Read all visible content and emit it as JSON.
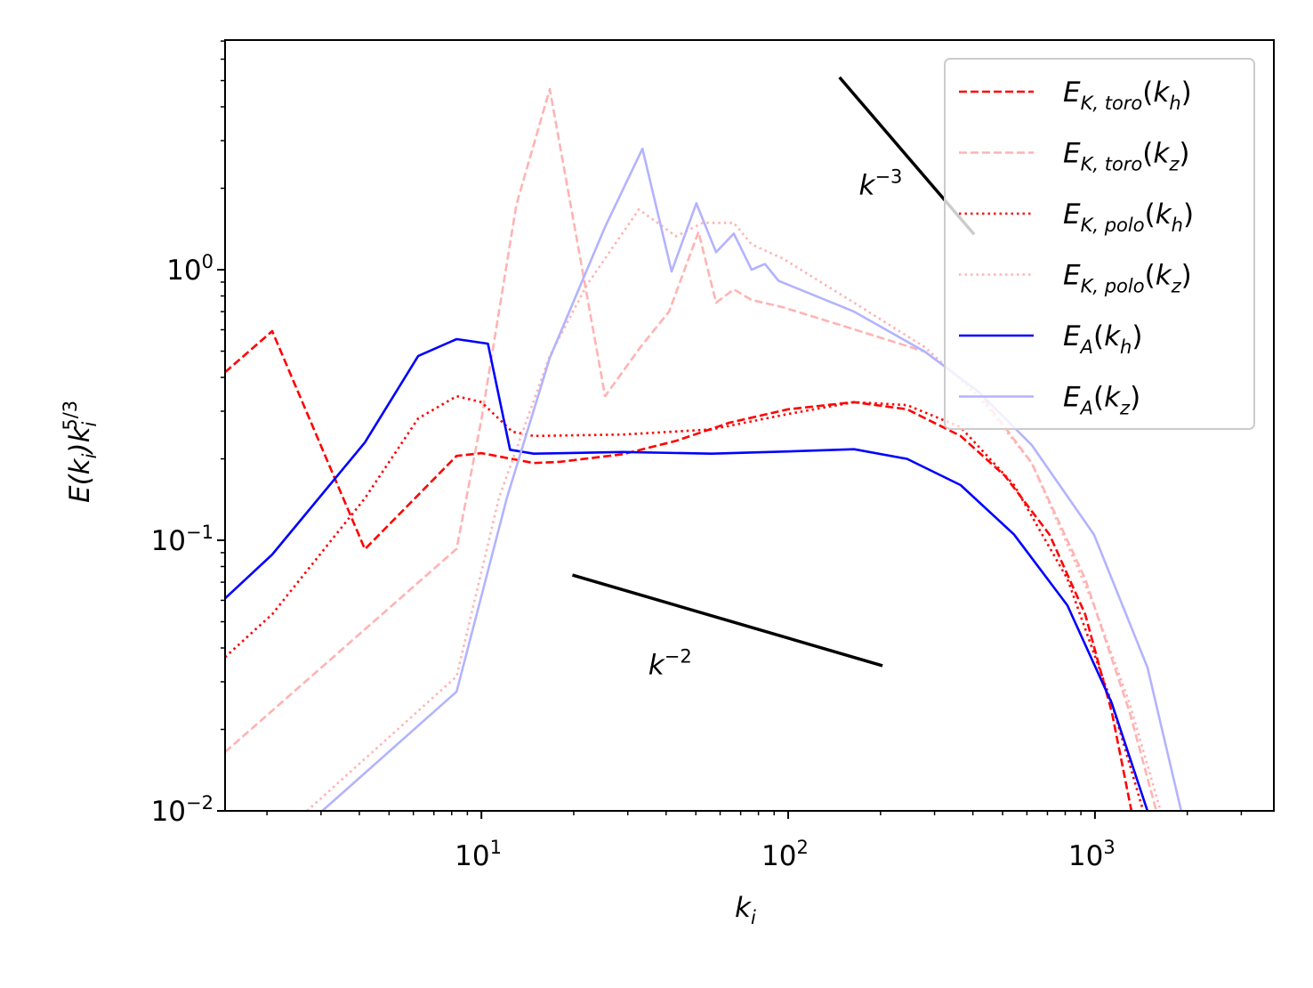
{
  "chart_data": {
    "type": "line",
    "title": "",
    "xlabel": {
      "base": "k",
      "sub": "i"
    },
    "ylabel": {
      "p1": "E(k",
      "s1": "i",
      "p2": ")k",
      "s2": "i",
      "sup": "5/3"
    },
    "xscale": "log",
    "yscale": "log",
    "xlim": [
      1.46,
      3830
    ],
    "ylim": [
      0.01,
      7.06
    ],
    "xticks": [
      {
        "base": "10",
        "exp": "1",
        "value": 10
      },
      {
        "base": "10",
        "exp": "2",
        "value": 100
      },
      {
        "base": "10",
        "exp": "3",
        "value": 1000
      }
    ],
    "yticks": [
      {
        "base": "10",
        "exp": "−2",
        "value": 0.01
      },
      {
        "base": "10",
        "exp": "−1",
        "value": 0.1
      },
      {
        "base": "10",
        "exp": "0",
        "value": 1
      }
    ],
    "grid": false,
    "legend_position": "top-right",
    "series": [
      {
        "name": "E_K,toro(k_h)",
        "label": {
          "base": "E",
          "sub": "K, toro",
          "arg": "k",
          "argsub": "h"
        },
        "color": "#ff0000",
        "style": "dashed",
        "x": [
          1.46,
          2.08,
          4.17,
          8.3,
          10,
          14.8,
          18.1,
          28.9,
          43.1,
          64.4,
          100,
          164,
          244,
          365,
          509,
          711,
          929,
          1135,
          1315
        ],
        "y": [
          0.418,
          0.593,
          0.0927,
          0.205,
          0.21,
          0.193,
          0.195,
          0.208,
          0.233,
          0.272,
          0.305,
          0.324,
          0.305,
          0.243,
          0.173,
          0.105,
          0.0533,
          0.0232,
          0.01
        ]
      },
      {
        "name": "E_K,toro(k_z)",
        "label": {
          "base": "E",
          "sub": "K, toro",
          "arg": "k",
          "argsub": "z"
        },
        "color": "#ffb3b3",
        "style": "dashed",
        "x": [
          1.46,
          8.3,
          10,
          13,
          16.7,
          25.3,
          33,
          40.9,
          51,
          58.2,
          66.5,
          76,
          96,
          164,
          279,
          417,
          622,
          929,
          1297,
          1585
        ],
        "y": [
          0.0165,
          0.093,
          0.28,
          1.74,
          4.65,
          0.341,
          0.518,
          0.7,
          1.38,
          0.755,
          0.846,
          0.773,
          0.727,
          0.602,
          0.498,
          0.354,
          0.193,
          0.072,
          0.0232,
          0.01
        ]
      },
      {
        "name": "E_K,polo(k_h)",
        "label": {
          "base": "E",
          "sub": "K, polo",
          "arg": "k",
          "argsub": "h"
        },
        "color": "#ff0000",
        "style": "dotted",
        "x": [
          1.46,
          2.08,
          4.17,
          6.22,
          8.3,
          10,
          12.6,
          14.8,
          28.9,
          56.3,
          100,
          164,
          244,
          365,
          545,
          813,
          1135,
          1436
        ],
        "y": [
          0.037,
          0.0533,
          0.143,
          0.282,
          0.341,
          0.324,
          0.252,
          0.243,
          0.246,
          0.257,
          0.293,
          0.324,
          0.316,
          0.262,
          0.16,
          0.072,
          0.025,
          0.01
        ]
      },
      {
        "name": "E_K,polo(k_z)",
        "label": {
          "base": "E",
          "sub": "K, polo",
          "arg": "k",
          "argsub": "z"
        },
        "color": "#ffb3b3",
        "style": "dotted",
        "x": [
          2.7,
          8.3,
          11.4,
          16.7,
          22.1,
          32.6,
          43.1,
          52.7,
          66.5,
          76,
          96,
          164,
          279,
          417,
          622,
          993,
          1297,
          1637
        ],
        "y": [
          0.01,
          0.0314,
          0.143,
          0.48,
          0.88,
          1.67,
          1.33,
          1.49,
          1.49,
          1.24,
          1.1,
          0.755,
          0.517,
          0.341,
          0.193,
          0.0575,
          0.025,
          0.01
        ]
      },
      {
        "name": "E_A(k_h)",
        "label": {
          "base": "E",
          "sub": "A",
          "arg": "k",
          "argsub": "h"
        },
        "color": "#0000ff",
        "style": "solid",
        "x": [
          1.46,
          2.08,
          4.17,
          6.22,
          8.3,
          10.5,
          12.4,
          14.8,
          28.9,
          56.3,
          100,
          164,
          244,
          365,
          545,
          813,
          1135,
          1483
        ],
        "y": [
          0.061,
          0.0886,
          0.23,
          0.48,
          0.554,
          0.533,
          0.216,
          0.209,
          0.212,
          0.209,
          0.213,
          0.217,
          0.2,
          0.16,
          0.105,
          0.0575,
          0.025,
          0.01
        ]
      },
      {
        "name": "E_A(k_z)",
        "label": {
          "base": "E",
          "sub": "A",
          "arg": "k",
          "argsub": "z"
        },
        "color": "#b3b3ff",
        "style": "solid",
        "x": [
          3.03,
          8.3,
          12.1,
          16.7,
          25.3,
          33.5,
          41.7,
          50.2,
          58.2,
          66.5,
          76,
          84,
          93,
          164,
          279,
          417,
          622,
          993,
          1483,
          1910
        ],
        "y": [
          0.01,
          0.0276,
          0.143,
          0.472,
          1.44,
          2.8,
          0.985,
          1.76,
          1.16,
          1.36,
          1.0,
          1.05,
          0.91,
          0.7,
          0.498,
          0.354,
          0.225,
          0.105,
          0.0339,
          0.01
        ]
      }
    ],
    "reference_lines": [
      {
        "name": "k^-2",
        "label": {
          "base": "k",
          "exp": "−2"
        },
        "x": [
          19.8,
          203
        ],
        "y": [
          0.0744,
          0.0344
        ],
        "label_at": [
          35,
          0.032
        ]
      },
      {
        "name": "k^-3",
        "label": {
          "base": "k",
          "exp": "−3"
        },
        "x": [
          147,
          404
        ],
        "y": [
          5.14,
          1.35
        ],
        "label_at": [
          170,
          1.9
        ]
      }
    ]
  }
}
